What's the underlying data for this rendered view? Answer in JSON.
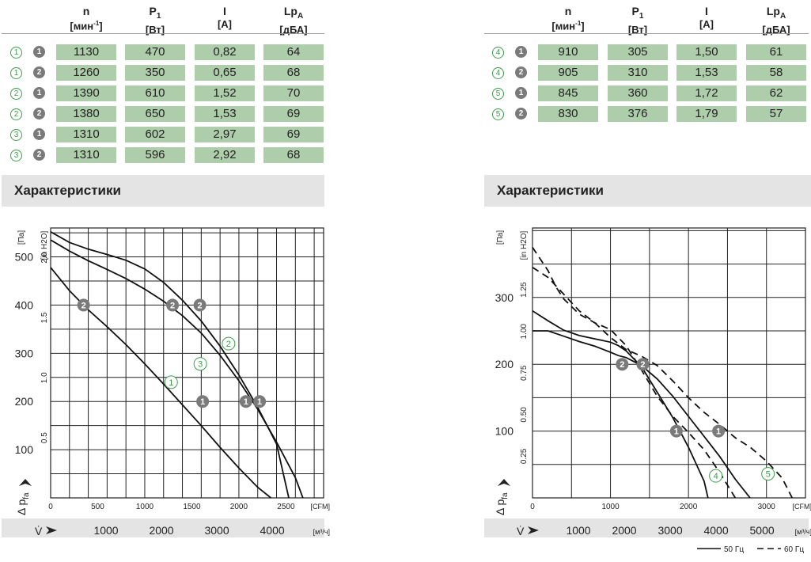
{
  "left_table": {
    "headers": [
      {
        "sym": "n",
        "sub": "",
        "unit": "[мин",
        "sup": "-1",
        "unit_end": "]"
      },
      {
        "sym": "P",
        "sub": "1",
        "unit": "[Вт]",
        "sup": "",
        "unit_end": ""
      },
      {
        "sym": "I",
        "sub": "",
        "unit": "[A]",
        "sup": "",
        "unit_end": ""
      },
      {
        "sym": "Lp",
        "sub": "A",
        "unit": "[дБА]",
        "sup": "",
        "unit_end": ""
      }
    ],
    "rows": [
      {
        "curve": "1",
        "voltage": "1",
        "n": "1130",
        "p": "470",
        "i": "0,82",
        "lp": "64"
      },
      {
        "curve": "1",
        "voltage": "2",
        "n": "1260",
        "p": "350",
        "i": "0,65",
        "lp": "68"
      },
      {
        "curve": "2",
        "voltage": "1",
        "n": "1390",
        "p": "610",
        "i": "1,52",
        "lp": "70"
      },
      {
        "curve": "2",
        "voltage": "2",
        "n": "1380",
        "p": "650",
        "i": "1,53",
        "lp": "69"
      },
      {
        "curve": "3",
        "voltage": "1",
        "n": "1310",
        "p": "602",
        "i": "2,97",
        "lp": "69"
      },
      {
        "curve": "3",
        "voltage": "2",
        "n": "1310",
        "p": "596",
        "i": "2,92",
        "lp": "68"
      }
    ]
  },
  "right_table": {
    "headers": [
      {
        "sym": "n",
        "sub": "",
        "unit": "[мин",
        "sup": "-1",
        "unit_end": "]"
      },
      {
        "sym": "P",
        "sub": "1",
        "unit": "[Вт]",
        "sup": "",
        "unit_end": ""
      },
      {
        "sym": "I",
        "sub": "",
        "unit": "[A]",
        "sup": "",
        "unit_end": ""
      },
      {
        "sym": "Lp",
        "sub": "A",
        "unit": "[дБА]",
        "sup": "",
        "unit_end": ""
      }
    ],
    "rows": [
      {
        "curve": "4",
        "voltage": "1",
        "n": "910",
        "p": "305",
        "i": "1,50",
        "lp": "61"
      },
      {
        "curve": "4",
        "voltage": "2",
        "n": "905",
        "p": "310",
        "i": "1,53",
        "lp": "58"
      },
      {
        "curve": "5",
        "voltage": "1",
        "n": "845",
        "p": "360",
        "i": "1,72",
        "lp": "62"
      },
      {
        "curve": "5",
        "voltage": "2",
        "n": "830",
        "p": "376",
        "i": "1,79",
        "lp": "57"
      }
    ]
  },
  "section_left_title": "Характеристики",
  "section_right_title": "Характеристики",
  "colors": {
    "cell": "#aecdaa",
    "band": "#e4e4e4",
    "green": "#3d9d4b",
    "grey_marker": "#7a7a7a",
    "line": "#111111"
  },
  "chart_data": [
    {
      "type": "line",
      "y_unit_left": "[Па]",
      "y_unit_right": "[in H2O]",
      "y_ticks_pa": [
        "100",
        "200",
        "300",
        "400",
        "500"
      ],
      "y_ticks_inh2o": [
        "0.5",
        "1.0",
        "1.5",
        "2.0"
      ],
      "x_ticks_cfm": [
        "0",
        "500",
        "1000",
        "1500",
        "2000",
        "2500"
      ],
      "x_unit_cfm": "[CFM]",
      "x_ticks_m3h": [
        "1000",
        "2000",
        "3000",
        "4000"
      ],
      "x_unit_m3h": "[м³/ч]",
      "y_symbol": "Δ p",
      "y_symbol_sub": "fa",
      "x_symbol": "V̇",
      "xlim_cfm": [
        0,
        2900
      ],
      "ylim_pa": [
        0,
        560
      ],
      "series": [
        {
          "curve_label": "1",
          "style": "solid",
          "points": [
            [
              0,
              478
            ],
            [
              200,
              430
            ],
            [
              400,
              390
            ],
            [
              600,
              355
            ],
            [
              800,
              318
            ],
            [
              1000,
              278
            ],
            [
              1200,
              236
            ],
            [
              1400,
              193
            ],
            [
              1600,
              150
            ],
            [
              1800,
              105
            ],
            [
              2000,
              62
            ],
            [
              2200,
              22
            ],
            [
              2340,
              0
            ]
          ]
        },
        {
          "curve_label": "2",
          "style": "solid",
          "points": [
            [
              0,
              535
            ],
            [
              200,
              512
            ],
            [
              400,
              492
            ],
            [
              600,
              474
            ],
            [
              800,
              455
            ],
            [
              1000,
              433
            ],
            [
              1200,
              408
            ],
            [
              1400,
              378
            ],
            [
              1600,
              342
            ],
            [
              1800,
              296
            ],
            [
              2000,
              243
            ],
            [
              2200,
              184
            ],
            [
              2400,
              116
            ],
            [
              2600,
              42
            ],
            [
              2680,
              0
            ]
          ]
        },
        {
          "curve_label": "3",
          "style": "solid",
          "points": [
            [
              0,
              552
            ],
            [
              200,
              530
            ],
            [
              400,
              516
            ],
            [
              600,
              505
            ],
            [
              800,
              493
            ],
            [
              1000,
              475
            ],
            [
              1200,
              447
            ],
            [
              1400,
              410
            ],
            [
              1600,
              367
            ],
            [
              1800,
              315
            ],
            [
              2000,
              255
            ],
            [
              2200,
              188
            ],
            [
              2400,
              112
            ],
            [
              2530,
              0
            ]
          ]
        }
      ],
      "markers": [
        {
          "type": "voltage",
          "label": "2",
          "cfm": 350,
          "pa": 400
        },
        {
          "type": "voltage",
          "label": "2",
          "cfm": 1295,
          "pa": 400
        },
        {
          "type": "voltage",
          "label": "2",
          "cfm": 1585,
          "pa": 400
        },
        {
          "type": "voltage",
          "label": "1",
          "cfm": 1615,
          "pa": 200
        },
        {
          "type": "voltage",
          "label": "1",
          "cfm": 2075,
          "pa": 200
        },
        {
          "type": "voltage",
          "label": "1",
          "cfm": 2220,
          "pa": 200
        },
        {
          "type": "curve",
          "label": "1",
          "cfm": 1280,
          "pa": 240
        },
        {
          "type": "curve",
          "label": "3",
          "cfm": 1590,
          "pa": 278
        },
        {
          "type": "curve",
          "label": "2",
          "cfm": 1890,
          "pa": 320
        }
      ]
    },
    {
      "type": "line",
      "y_unit_left": "[Па]",
      "y_unit_right": "[in H2O]",
      "y_ticks_pa": [
        "100",
        "200",
        "300"
      ],
      "y_ticks_inh2o": [
        "0.25",
        "0.50",
        "0.75",
        "1.00",
        "1.25"
      ],
      "x_ticks_cfm": [
        "0",
        "1000",
        "2000",
        "3000"
      ],
      "x_unit_cfm": "[CFM]",
      "x_ticks_m3h": [
        "1000",
        "2000",
        "3000",
        "4000",
        "5000"
      ],
      "x_unit_m3h": "[м³/ч]",
      "y_symbol": "Δ p",
      "y_symbol_sub": "fa",
      "x_symbol": "V̇",
      "xlim_cfm": [
        0,
        3500
      ],
      "ylim_pa": [
        0,
        404
      ],
      "legend": {
        "solid": "50 Гц",
        "dashed": "60 Гц"
      },
      "series": [
        {
          "curve_label": "4",
          "style": "solid",
          "points": [
            [
              0,
              280
            ],
            [
              200,
              265
            ],
            [
              400,
              251
            ],
            [
              600,
              243
            ],
            [
              800,
              238
            ],
            [
              1000,
              233
            ],
            [
              1100,
              228
            ],
            [
              1200,
              220
            ],
            [
              1400,
              196
            ],
            [
              1600,
              158
            ],
            [
              1800,
              120
            ],
            [
              2000,
              76
            ],
            [
              2200,
              25
            ],
            [
              2250,
              0
            ]
          ]
        },
        {
          "curve_label": "5",
          "style": "solid",
          "points": [
            [
              0,
              250
            ],
            [
              200,
              250
            ],
            [
              400,
              242
            ],
            [
              600,
              234
            ],
            [
              800,
              227
            ],
            [
              1000,
              218
            ],
            [
              1100,
              213
            ],
            [
              1200,
              210
            ],
            [
              1400,
              198
            ],
            [
              1600,
              178
            ],
            [
              1800,
              152
            ],
            [
              2000,
              122
            ],
            [
              2200,
              92
            ],
            [
              2400,
              62
            ],
            [
              2600,
              28
            ],
            [
              2790,
              0
            ]
          ]
        },
        {
          "curve_label": "4",
          "style": "dashed",
          "points": [
            [
              0,
              375
            ],
            [
              200,
              340
            ],
            [
              300,
              316
            ],
            [
              400,
              298
            ],
            [
              600,
              275
            ],
            [
              800,
              262
            ],
            [
              1000,
              252
            ],
            [
              1200,
              228
            ],
            [
              1400,
              191
            ],
            [
              1600,
              152
            ],
            [
              1800,
              122
            ],
            [
              2000,
              98
            ],
            [
              2200,
              72
            ],
            [
              2400,
              38
            ],
            [
              2600,
              0
            ]
          ]
        },
        {
          "curve_label": "5",
          "style": "dashed",
          "points": [
            [
              0,
              345
            ],
            [
              200,
              330
            ],
            [
              400,
              305
            ],
            [
              600,
              280
            ],
            [
              800,
              262
            ],
            [
              1000,
              240
            ],
            [
              1200,
              222
            ],
            [
              1400,
              212
            ],
            [
              1600,
              198
            ],
            [
              1800,
              175
            ],
            [
              2000,
              150
            ],
            [
              2200,
              128
            ],
            [
              2400,
              110
            ],
            [
              2600,
              90
            ],
            [
              2800,
              75
            ],
            [
              3000,
              55
            ],
            [
              3200,
              30
            ],
            [
              3330,
              0
            ]
          ]
        }
      ],
      "markers": [
        {
          "type": "voltage",
          "label": "2",
          "cfm": 1150,
          "pa": 200
        },
        {
          "type": "voltage",
          "label": "2",
          "cfm": 1415,
          "pa": 200
        },
        {
          "type": "voltage",
          "label": "1",
          "cfm": 1845,
          "pa": 100
        },
        {
          "type": "voltage",
          "label": "1",
          "cfm": 2385,
          "pa": 100
        },
        {
          "type": "curve",
          "label": "4",
          "cfm": 2350,
          "pa": 33
        },
        {
          "type": "curve",
          "label": "5",
          "cfm": 3020,
          "pa": 36
        }
      ]
    }
  ]
}
